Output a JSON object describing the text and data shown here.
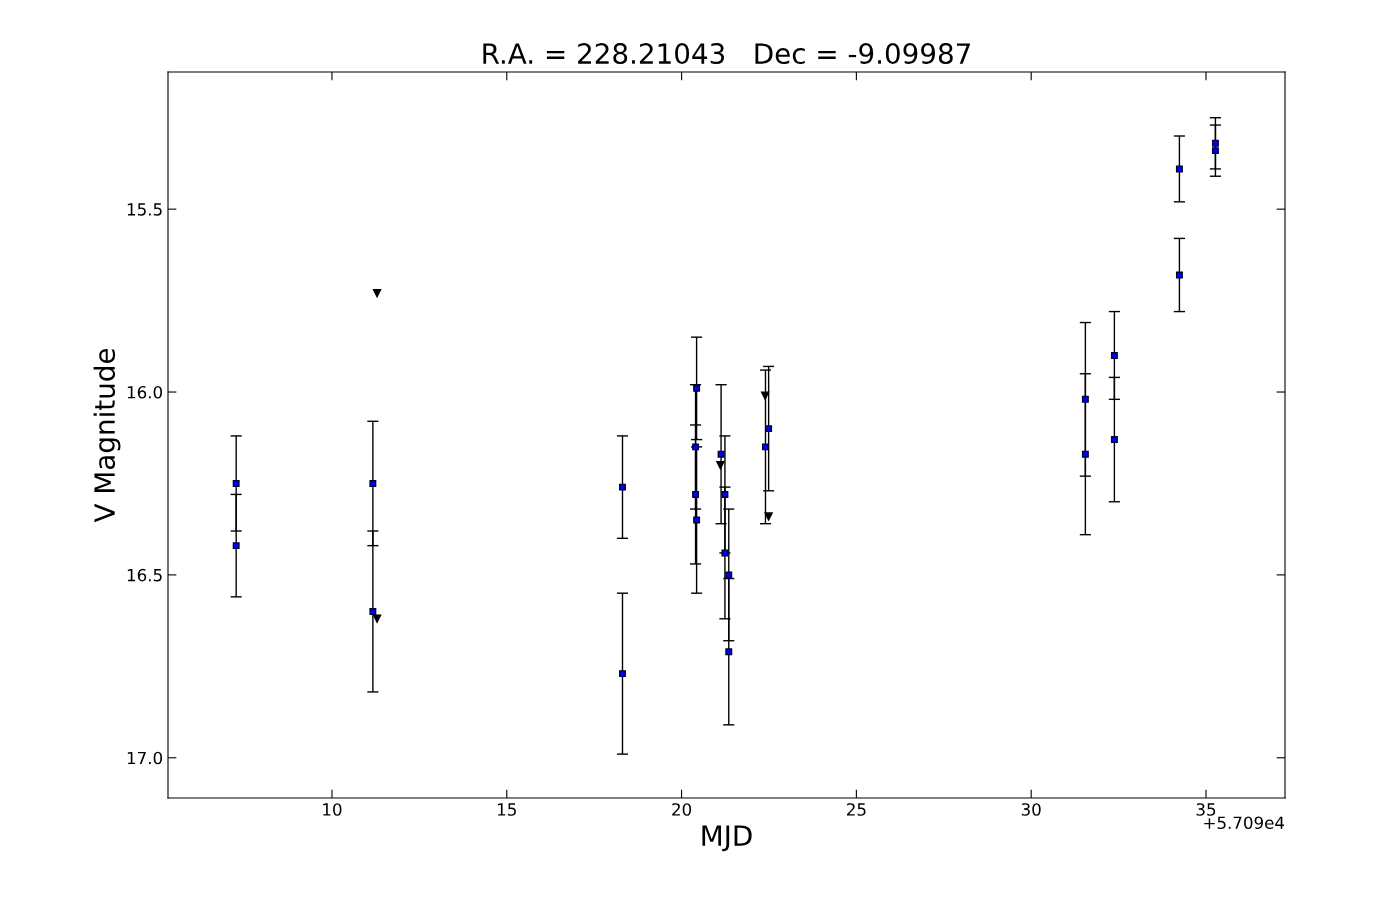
{
  "chart_data": {
    "type": "scatter",
    "title": "R.A. = 228.21043   Dec = -9.09987",
    "xlabel": "MJD",
    "ylabel": "V Magnitude",
    "annotations": [
      "+5.709e4"
    ],
    "series": [
      {
        "color": "#0000ff",
        "marker": "square",
        "x": [
          7.26,
          7.26,
          11.17,
          11.17,
          18.31,
          18.31,
          20.43,
          20.4,
          20.4,
          20.43,
          21.13,
          21.24,
          21.24,
          21.35,
          21.35,
          22.4,
          22.49,
          31.55,
          31.55,
          32.38,
          32.38,
          34.24,
          34.24,
          35.27,
          35.27
        ],
        "values": [
          16.25,
          16.42,
          16.25,
          16.6,
          16.26,
          16.77,
          15.99,
          16.15,
          16.28,
          16.35,
          16.17,
          16.28,
          16.44,
          16.5,
          16.71,
          16.15,
          16.1,
          16.02,
          16.17,
          15.9,
          16.13,
          15.39,
          15.68,
          15.32,
          15.34
        ],
        "errors": [
          0.13,
          0.14,
          0.17,
          0.22,
          0.14,
          0.22,
          0.14,
          0.17,
          0.19,
          0.2,
          0.19,
          0.16,
          0.18,
          0.18,
          0.2,
          0.21,
          0.17,
          0.21,
          0.22,
          0.12,
          0.17,
          0.09,
          0.1,
          0.07,
          0.07
        ]
      },
      {
        "color": "#000000",
        "marker": "triangle",
        "x": [
          11.29,
          11.29,
          21.11,
          22.39,
          22.49
        ],
        "values": [
          15.73,
          16.62,
          16.2,
          16.01,
          16.34
        ]
      }
    ],
    "xlim": [
      5.31,
      37.26
    ],
    "xticks": [
      10,
      15,
      20,
      25,
      30,
      35
    ],
    "ylim": [
      17.11,
      15.125
    ],
    "yticks": [
      {
        "value": 15.5,
        "label": "15.5"
      },
      {
        "value": 16,
        "label": "16.0"
      },
      {
        "value": 16.5,
        "label": "16.5"
      },
      {
        "value": 17,
        "label": "17.0"
      }
    ],
    "grid": false,
    "legend": false
  }
}
